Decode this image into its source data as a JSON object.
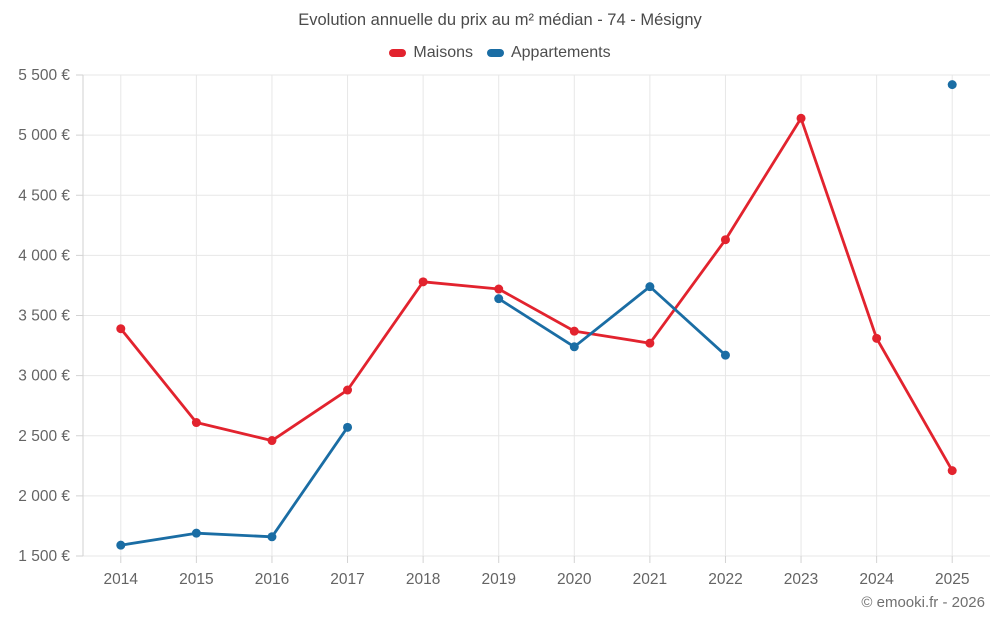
{
  "title": "Evolution annuelle du prix au m² médian - 74 - Mésigny",
  "footer": "© emooki.fr - 2026",
  "chart_data": {
    "type": "line",
    "title": "Evolution annuelle du prix au m² médian - 74 - Mésigny",
    "categories": [
      "2014",
      "2015",
      "2016",
      "2017",
      "2018",
      "2019",
      "2020",
      "2021",
      "2022",
      "2023",
      "2024",
      "2025"
    ],
    "series": [
      {
        "name": "Maisons",
        "color": "#e2232e",
        "values": [
          3390,
          2610,
          2460,
          2880,
          3780,
          3720,
          3370,
          3270,
          4130,
          5140,
          3310,
          2210
        ]
      },
      {
        "name": "Appartements",
        "color": "#1a6da4",
        "values": [
          1590,
          1690,
          1660,
          2570,
          null,
          3640,
          3240,
          3740,
          3170,
          null,
          null,
          5420
        ]
      }
    ],
    "ylim": [
      1500,
      5500
    ],
    "y_ticks": [
      {
        "value": 1500,
        "label": "1 500 €"
      },
      {
        "value": 2000,
        "label": "2 000 €"
      },
      {
        "value": 2500,
        "label": "2 500 €"
      },
      {
        "value": 3000,
        "label": "3 000 €"
      },
      {
        "value": 3500,
        "label": "3 500 €"
      },
      {
        "value": 4000,
        "label": "4 000 €"
      },
      {
        "value": 4500,
        "label": "4 500 €"
      },
      {
        "value": 5000,
        "label": "5 000 €"
      },
      {
        "value": 5500,
        "label": "5 500 €"
      }
    ],
    "grid": true,
    "legend_position": "top",
    "grid_color": "#e7e7e7",
    "axis_color": "#d2d2d2",
    "label_color": "#646464"
  }
}
